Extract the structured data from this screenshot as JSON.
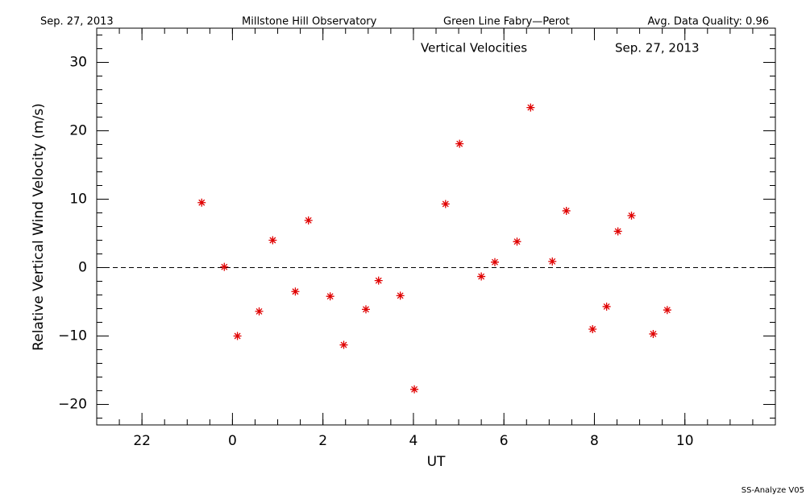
{
  "header": {
    "date": "Sep. 27, 2013",
    "observatory": "Millstone Hill Observatory",
    "instrument": "Green Line Fabry—Perot",
    "quality": "Avg. Data Quality: 0.96"
  },
  "footer": "SS-Analyze V05",
  "chart_data": {
    "type": "scatter",
    "title": "Vertical Velocities",
    "subtitle": "Sep. 27, 2013",
    "x_label": "UT",
    "y_label": "Relative Vertical Wind Velocity (m/s)",
    "color": "#e00000",
    "x": [
      -0.68,
      -0.18,
      0.11,
      0.59,
      0.89,
      1.39,
      1.68,
      2.16,
      2.46,
      2.95,
      3.23,
      3.71,
      4.02,
      4.71,
      5.02,
      5.5,
      5.8,
      6.29,
      6.59,
      7.07,
      7.38,
      7.96,
      8.27,
      8.52,
      8.82,
      9.3,
      9.61
    ],
    "y": [
      9.5,
      0.1,
      -10.0,
      -6.4,
      4.0,
      -3.5,
      6.9,
      -4.2,
      -11.3,
      -6.1,
      -1.9,
      -4.1,
      -17.8,
      9.3,
      18.1,
      -1.3,
      0.8,
      3.8,
      23.4,
      0.9,
      8.3,
      -9.0,
      -5.7,
      5.3,
      7.6,
      -9.7,
      -6.2
    ],
    "xlim": [
      -3,
      12
    ],
    "ylim": [
      -23,
      35
    ],
    "xticks": [
      {
        "value": -2,
        "label": "22"
      },
      0,
      2,
      4,
      6,
      8,
      10
    ],
    "yticks": [
      {
        "value": -20,
        "label": "−20"
      },
      {
        "value": -10,
        "label": "−10"
      },
      0,
      10,
      20,
      30
    ],
    "xminor": 0.5,
    "yminor": 2,
    "hline": 0
  }
}
